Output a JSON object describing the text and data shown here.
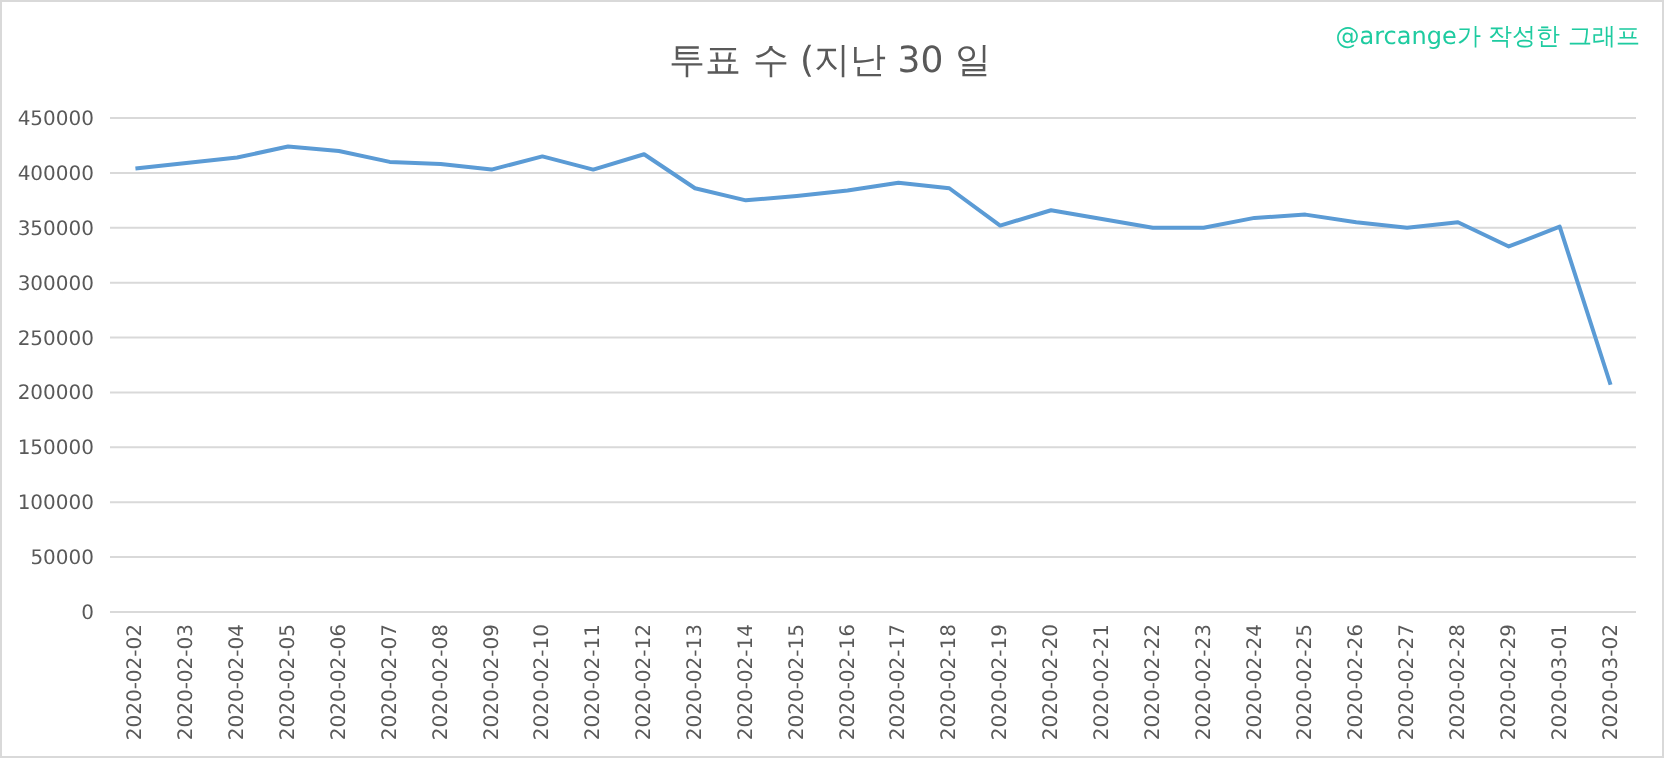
{
  "chart_data": {
    "type": "line",
    "title": "투표 수 (지난 30 일",
    "annotations": [
      "@arcange가 작성한 그래프"
    ],
    "categories": [
      "2020-02-02",
      "2020-02-03",
      "2020-02-04",
      "2020-02-05",
      "2020-02-06",
      "2020-02-07",
      "2020-02-08",
      "2020-02-09",
      "2020-02-10",
      "2020-02-11",
      "2020-02-12",
      "2020-02-13",
      "2020-02-14",
      "2020-02-15",
      "2020-02-16",
      "2020-02-17",
      "2020-02-18",
      "2020-02-19",
      "2020-02-20",
      "2020-02-21",
      "2020-02-22",
      "2020-02-23",
      "2020-02-24",
      "2020-02-25",
      "2020-02-26",
      "2020-02-27",
      "2020-02-28",
      "2020-02-29",
      "2020-03-01",
      "2020-03-02"
    ],
    "series": [
      {
        "color": "#5b9bd5",
        "values": [
          404000,
          409000,
          414000,
          424000,
          420000,
          410000,
          408000,
          403000,
          415000,
          403000,
          417000,
          386000,
          375000,
          379000,
          384000,
          391000,
          386000,
          352000,
          366000,
          358000,
          350000,
          350000,
          359000,
          362000,
          355000,
          350000,
          355000,
          333000,
          351000,
          207000
        ]
      }
    ],
    "ylim": [
      0,
      450000
    ],
    "yticks": [
      0,
      50000,
      100000,
      150000,
      200000,
      250000,
      300000,
      350000,
      400000,
      450000
    ],
    "grid": "y",
    "marker": "none",
    "line_style": "solid"
  }
}
